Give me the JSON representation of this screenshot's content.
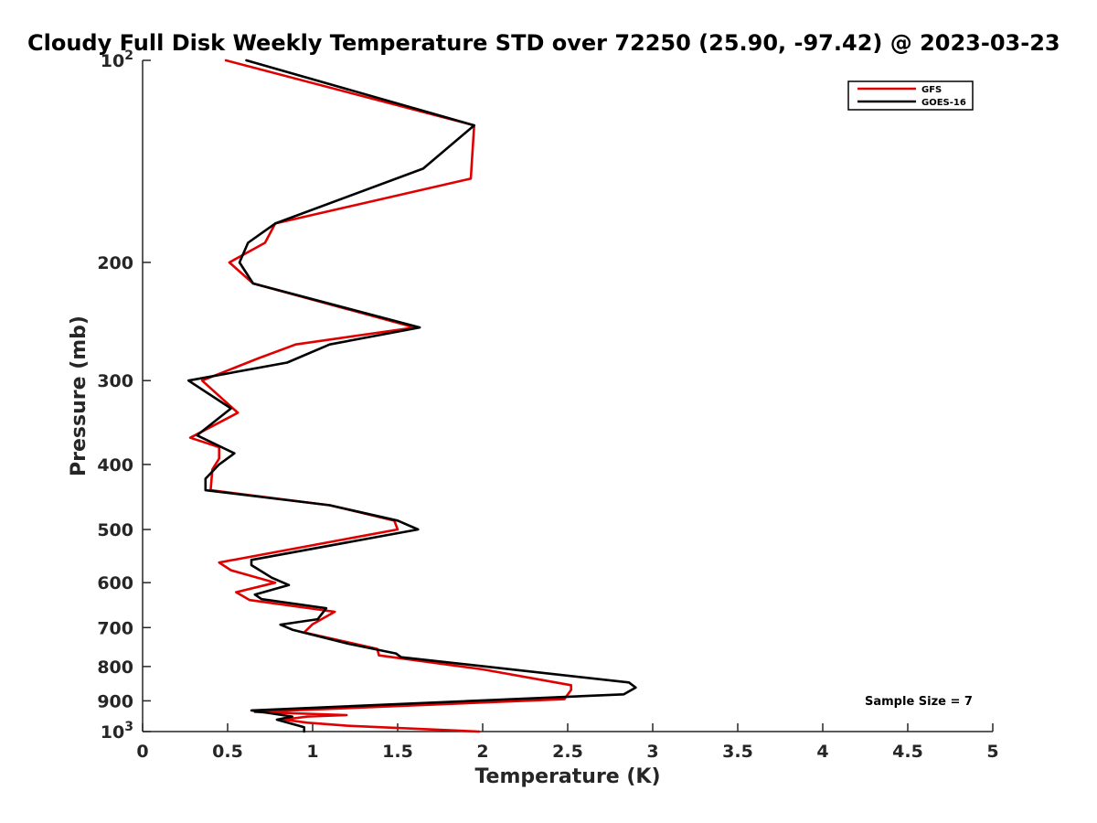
{
  "chart_data": {
    "type": "line",
    "title": "Cloudy Full Disk Weekly Temperature STD over 72250 (25.90, -97.42) @ 2023-03-23",
    "xlabel": "Temperature (K)",
    "ylabel": "Pressure (mb)",
    "xlim": [
      0,
      5
    ],
    "ylim": [
      100,
      1000
    ],
    "y_scale": "log",
    "y_reversed": true,
    "xticks": [
      0,
      0.5,
      1,
      1.5,
      2,
      2.5,
      3,
      3.5,
      4,
      4.5,
      5
    ],
    "xtick_labels": [
      "0",
      "0.5",
      "1",
      "1.5",
      "2",
      "2.5",
      "3",
      "3.5",
      "4",
      "4.5",
      "5"
    ],
    "yticks": [
      100,
      200,
      300,
      400,
      500,
      600,
      700,
      800,
      900,
      1000
    ],
    "ytick_labels": [
      {
        "base": "10",
        "exp": "2"
      },
      {
        "text": "200"
      },
      {
        "text": "300"
      },
      {
        "text": "400"
      },
      {
        "text": "500"
      },
      {
        "text": "600"
      },
      {
        "text": "700"
      },
      {
        "text": "800"
      },
      {
        "text": "900"
      },
      {
        "base": "10",
        "exp": "3"
      }
    ],
    "grid": false,
    "legend_position": "top-right",
    "annotation": "Sample Size = 7",
    "series": [
      {
        "name": "GFS",
        "color": "#e00000",
        "points": [
          [
            0.49,
            100
          ],
          [
            1.95,
            125
          ],
          [
            1.93,
            150
          ],
          [
            0.78,
            175
          ],
          [
            0.72,
            187
          ],
          [
            0.51,
            200
          ],
          [
            0.65,
            215
          ],
          [
            1.6,
            250
          ],
          [
            0.9,
            265
          ],
          [
            0.68,
            278
          ],
          [
            0.35,
            300
          ],
          [
            0.56,
            335
          ],
          [
            0.28,
            365
          ],
          [
            0.45,
            377
          ],
          [
            0.45,
            392
          ],
          [
            0.41,
            407
          ],
          [
            0.4,
            437
          ],
          [
            1.1,
            460
          ],
          [
            1.48,
            485
          ],
          [
            1.5,
            500
          ],
          [
            0.45,
            560
          ],
          [
            0.52,
            575
          ],
          [
            0.78,
            600
          ],
          [
            0.55,
            620
          ],
          [
            0.63,
            637
          ],
          [
            1.13,
            663
          ],
          [
            1.0,
            692
          ],
          [
            0.95,
            712
          ],
          [
            1.38,
            753
          ],
          [
            1.39,
            770
          ],
          [
            2.0,
            808
          ],
          [
            2.52,
            853
          ],
          [
            2.52,
            867
          ],
          [
            2.48,
            895
          ],
          [
            0.66,
            935
          ],
          [
            1.2,
            945
          ],
          [
            0.97,
            950
          ],
          [
            0.83,
            960
          ],
          [
            0.97,
            970
          ],
          [
            1.2,
            980
          ],
          [
            1.98,
            1000
          ]
        ]
      },
      {
        "name": "GOES-16",
        "color": "#000000",
        "points": [
          [
            0.61,
            100
          ],
          [
            1.95,
            125
          ],
          [
            1.65,
            145
          ],
          [
            0.78,
            175
          ],
          [
            0.62,
            187
          ],
          [
            0.57,
            200
          ],
          [
            0.65,
            215
          ],
          [
            1.63,
            250
          ],
          [
            1.1,
            265
          ],
          [
            0.85,
            282
          ],
          [
            0.27,
            300
          ],
          [
            0.52,
            330
          ],
          [
            0.32,
            362
          ],
          [
            0.54,
            385
          ],
          [
            0.45,
            400
          ],
          [
            0.37,
            420
          ],
          [
            0.37,
            437
          ],
          [
            1.1,
            460
          ],
          [
            1.5,
            485
          ],
          [
            1.62,
            500
          ],
          [
            0.64,
            555
          ],
          [
            0.64,
            565
          ],
          [
            0.76,
            590
          ],
          [
            0.86,
            605
          ],
          [
            0.66,
            625
          ],
          [
            0.7,
            635
          ],
          [
            1.08,
            655
          ],
          [
            1.03,
            680
          ],
          [
            0.81,
            693
          ],
          [
            0.88,
            705
          ],
          [
            1.21,
            740
          ],
          [
            1.49,
            765
          ],
          [
            1.52,
            775
          ],
          [
            2.02,
            800
          ],
          [
            2.86,
            845
          ],
          [
            2.9,
            860
          ],
          [
            2.83,
            880
          ],
          [
            0.64,
            930
          ],
          [
            0.88,
            950
          ],
          [
            0.79,
            960
          ],
          [
            0.95,
            985
          ],
          [
            0.95,
            1000
          ]
        ]
      }
    ]
  }
}
